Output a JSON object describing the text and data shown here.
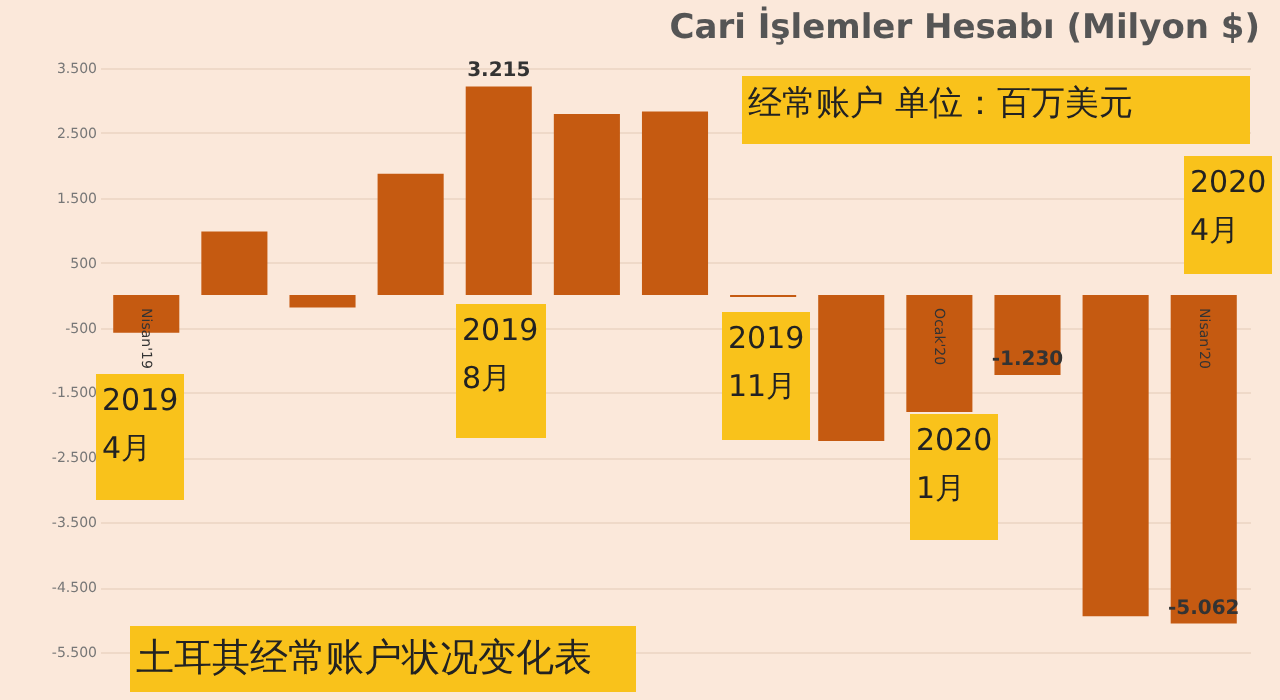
{
  "chart_data": {
    "type": "bar",
    "title": "Cari İşlemler Hesabı (Milyon $)",
    "categories": [
      "Nisan'19",
      null,
      null,
      null,
      null,
      null,
      null,
      null,
      null,
      "Ocak'20",
      null,
      null,
      "Nisan'20"
    ],
    "values": [
      -580,
      980,
      -190,
      1870,
      3215,
      2790,
      2830,
      -30,
      -2250,
      -1800,
      -1230,
      -4950,
      -5062
    ],
    "value_labels": [
      null,
      null,
      null,
      null,
      "3.215",
      null,
      null,
      null,
      null,
      null,
      "-1.230",
      null,
      "-5.062"
    ],
    "color": "#c55a11",
    "ylim": [
      -5500,
      3500
    ],
    "yticks": [
      {
        "value": 3500,
        "label": "3.500"
      },
      {
        "value": 2500,
        "label": "2.500"
      },
      {
        "value": 1500,
        "label": "1.500"
      },
      {
        "value": 500,
        "label": "500"
      },
      {
        "value": -500,
        "label": "-500"
      },
      {
        "value": -1500,
        "label": "-1.500"
      },
      {
        "value": -2500,
        "label": "-2.500"
      },
      {
        "value": -3500,
        "label": "-3.500"
      },
      {
        "value": -4500,
        "label": "-4.500"
      },
      {
        "value": -5500,
        "label": "-5.500"
      }
    ],
    "grid": "y",
    "annotations": [
      "经常账户  单位：百万美元",
      "2019\n4月",
      "2019\n8月",
      "2019\n11月",
      "2020\n1月",
      "2020\n4月",
      "土耳其经常账户状况变化表"
    ]
  }
}
